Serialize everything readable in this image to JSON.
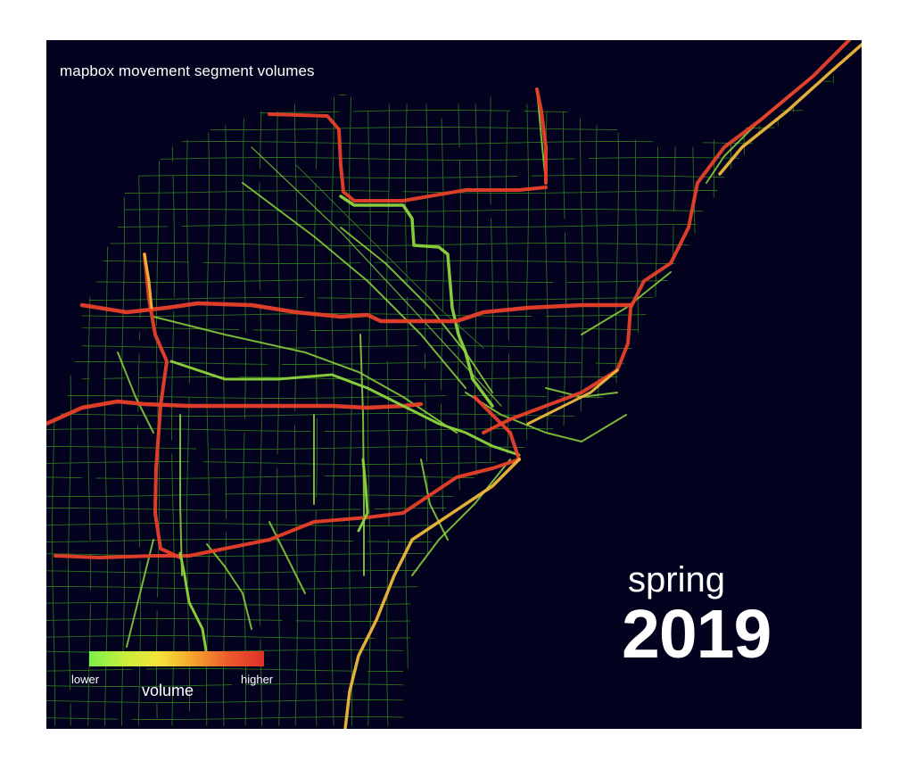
{
  "title": "mapbox movement segment volumes",
  "season": "spring",
  "year": "2019",
  "legend": {
    "title": "volume",
    "low_label": "lower",
    "high_label": "higher",
    "colors": [
      "#7cf04a",
      "#c8ee3c",
      "#f4e43a",
      "#f4a02c",
      "#ec5a2c",
      "#e0302a"
    ]
  },
  "colors": {
    "background": "#02021f",
    "minor_road": "#2f7a1c",
    "medium_road": "#8ed53c",
    "high_volume": "#e8402a",
    "mid_volume": "#f0b83a"
  }
}
